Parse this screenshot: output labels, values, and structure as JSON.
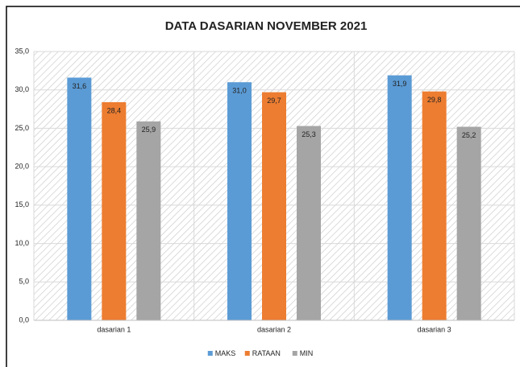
{
  "chart_data": {
    "type": "bar",
    "title": "DATA DASARIAN NOVEMBER 2021",
    "categories": [
      "dasarian 1",
      "dasarian 2",
      "dasarian 3"
    ],
    "series": [
      {
        "name": "MAKS",
        "color": "#5b9bd5",
        "values": [
          31.6,
          31.0,
          31.9
        ],
        "value_labels": [
          "31,6",
          "31,0",
          "31,9"
        ]
      },
      {
        "name": "RATAAN",
        "color": "#ed7d31",
        "values": [
          28.4,
          29.7,
          29.8
        ],
        "value_labels": [
          "28,4",
          "29,7",
          "29,8"
        ]
      },
      {
        "name": "MIN",
        "color": "#a5a5a5",
        "values": [
          25.9,
          25.3,
          25.2
        ],
        "value_labels": [
          "25,9",
          "25,3",
          "25,2"
        ]
      }
    ],
    "ylim": [
      0,
      35
    ],
    "yticks": [
      {
        "value": 0,
        "label": "0,0"
      },
      {
        "value": 5,
        "label": "5,0"
      },
      {
        "value": 10,
        "label": "10,0"
      },
      {
        "value": 15,
        "label": "15,0"
      },
      {
        "value": 20,
        "label": "20,0"
      },
      {
        "value": 25,
        "label": "25,0"
      },
      {
        "value": 30,
        "label": "30,0"
      },
      {
        "value": 35,
        "label": "35,0"
      }
    ],
    "grid": true,
    "legend": "bottom"
  }
}
